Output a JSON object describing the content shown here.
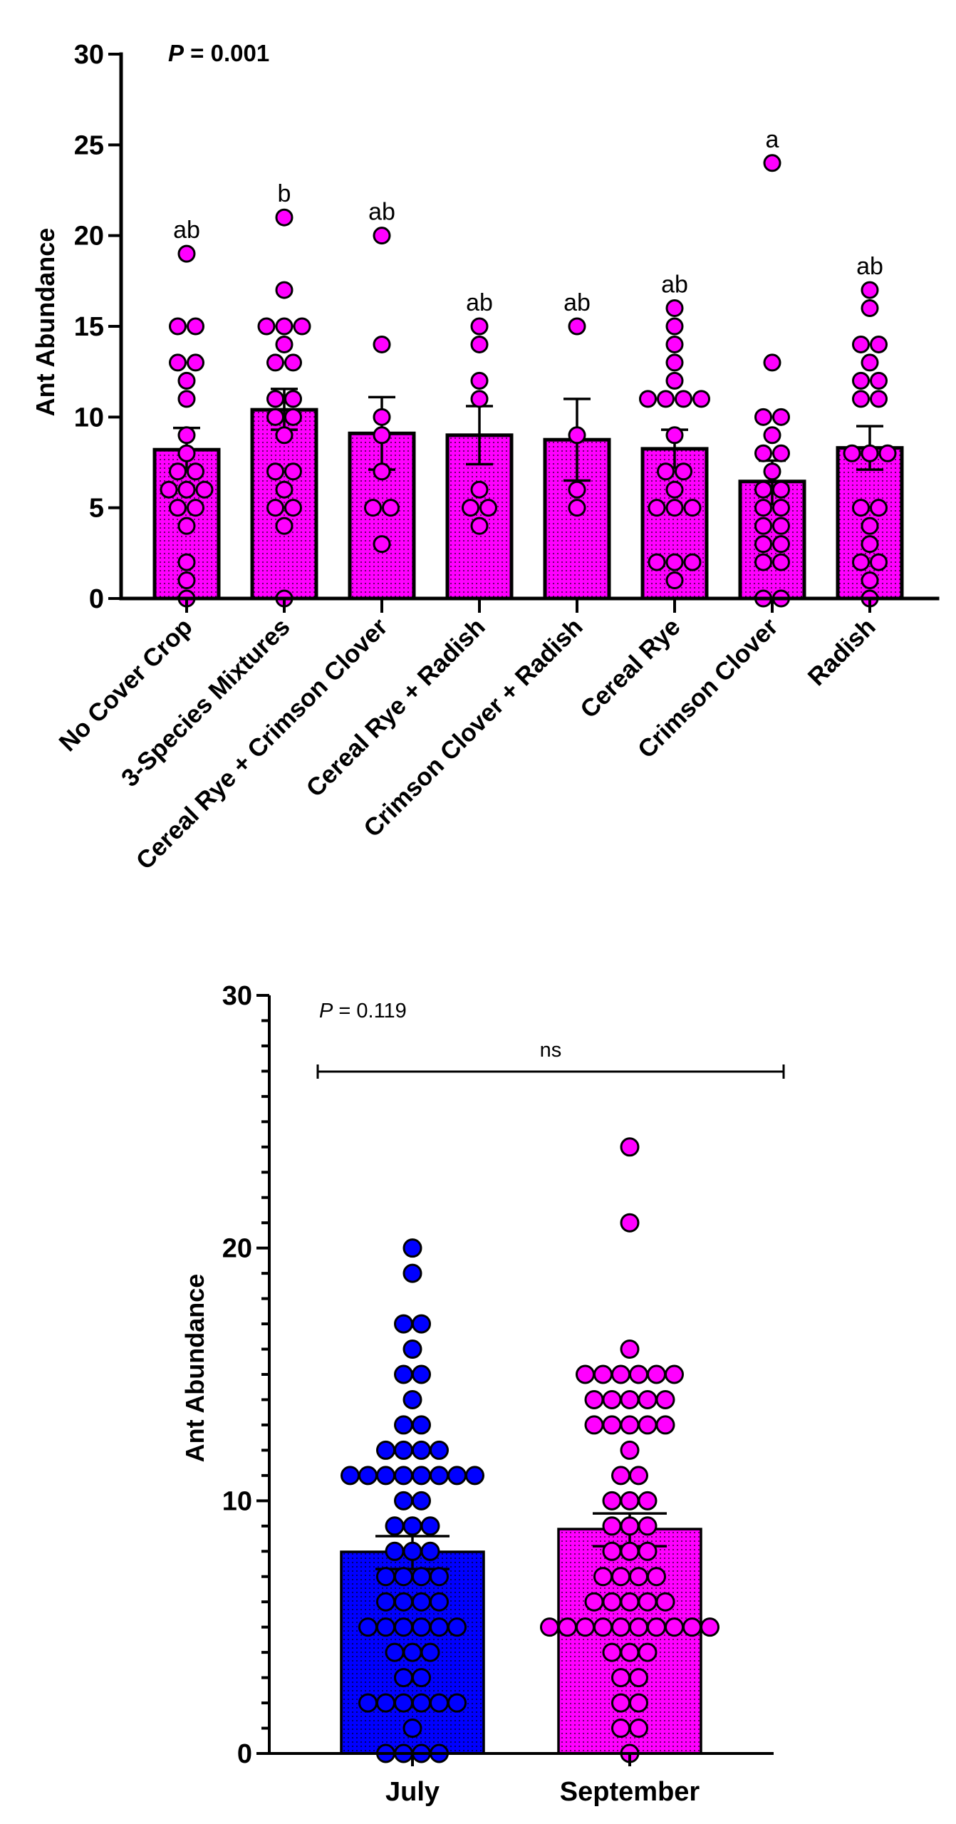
{
  "chart_data": [
    {
      "type": "bar",
      "subtype": "bar-with-scatter-points-and-sem-error-bars",
      "title": "",
      "annotation": {
        "p_label": "P",
        "p_text": " = 0.001"
      },
      "xlabel": "",
      "ylabel": "Ant Abundance",
      "ylim": [
        0,
        30
      ],
      "yticks": [
        0,
        5,
        10,
        15,
        20,
        25,
        30
      ],
      "grid": false,
      "legend": "none",
      "bar_color": "#ff00ff",
      "point_color": "#ff00ff",
      "categories": [
        "No Cover Crop",
        "3-Species Mixtures",
        "Cereal Rye + Crimson Clover",
        "Cereal Rye + Radish",
        "Crimson Clover + Radish",
        "Cereal Rye",
        "Crimson Clover",
        "Radish"
      ],
      "means": [
        8.2,
        10.4,
        9.1,
        9.0,
        8.75,
        8.25,
        6.45,
        8.3
      ],
      "error_upper": [
        9.4,
        11.55,
        11.1,
        10.6,
        11.0,
        9.3,
        7.6,
        9.5
      ],
      "error_lower": [
        7.1,
        9.3,
        7.1,
        7.4,
        6.5,
        7.2,
        5.2,
        7.1
      ],
      "significance_letters": [
        "ab",
        "b",
        "ab",
        "ab",
        "ab",
        "ab",
        "a",
        "ab"
      ],
      "points": [
        [
          19,
          15,
          15,
          13,
          13,
          12,
          11,
          9,
          8,
          7,
          7,
          6,
          6,
          6,
          5,
          5,
          4,
          2,
          1,
          0
        ],
        [
          21,
          17,
          15,
          15,
          15,
          14,
          13,
          13,
          11,
          11,
          10,
          10,
          9,
          7,
          7,
          6,
          5,
          5,
          4,
          0
        ],
        [
          20,
          14,
          10,
          9,
          7,
          5,
          5,
          3
        ],
        [
          15,
          14,
          12,
          11,
          6,
          5,
          5,
          4
        ],
        [
          15,
          9,
          6,
          5
        ],
        [
          16,
          15,
          14,
          13,
          12,
          11,
          11,
          11,
          11,
          9,
          7,
          7,
          6,
          5,
          5,
          5,
          2,
          2,
          2,
          1
        ],
        [
          24,
          13,
          10,
          10,
          9,
          8,
          8,
          7,
          6,
          6,
          5,
          5,
          4,
          4,
          3,
          3,
          2,
          2,
          0,
          0
        ],
        [
          17,
          16,
          14,
          14,
          13,
          12,
          12,
          11,
          11,
          8,
          8,
          8,
          5,
          5,
          4,
          3,
          2,
          2,
          1,
          0
        ]
      ]
    },
    {
      "type": "bar",
      "subtype": "bar-with-scatter-points-and-sem-error-bars",
      "title": "",
      "annotation": {
        "p_label": "P",
        "p_text": " = 0.119"
      },
      "comparison_bracket": {
        "from": "July",
        "to": "September",
        "label": "ns"
      },
      "xlabel": "",
      "ylabel": "Ant Abundance",
      "ylim": [
        0,
        30
      ],
      "yticks": [
        0,
        10,
        20,
        30
      ],
      "minor_tick_step": 1,
      "grid": false,
      "legend": "none",
      "categories": [
        "July",
        "September"
      ],
      "colors": [
        "#0000ff",
        "#ff00ff"
      ],
      "means": [
        7.98,
        8.88
      ],
      "error_upper": [
        8.6,
        9.5
      ],
      "error_lower": [
        7.3,
        8.2
      ],
      "points": [
        [
          20,
          19,
          17,
          17,
          16,
          15,
          15,
          14,
          13,
          13,
          12,
          12,
          12,
          12,
          11,
          11,
          11,
          11,
          11,
          11,
          11,
          11,
          10,
          10,
          9,
          9,
          9,
          8,
          8,
          8,
          7,
          7,
          7,
          7,
          6,
          6,
          6,
          6,
          5,
          5,
          5,
          5,
          5,
          5,
          4,
          4,
          4,
          3,
          3,
          2,
          2,
          2,
          2,
          2,
          2,
          1,
          0,
          0,
          0,
          0
        ],
        [
          24,
          21,
          16,
          15,
          15,
          15,
          15,
          15,
          15,
          14,
          14,
          14,
          14,
          14,
          13,
          13,
          13,
          13,
          13,
          12,
          11,
          11,
          10,
          10,
          10,
          9,
          9,
          9,
          8,
          8,
          8,
          7,
          7,
          7,
          7,
          6,
          6,
          6,
          6,
          6,
          5,
          5,
          5,
          5,
          5,
          5,
          5,
          5,
          5,
          5,
          4,
          4,
          4,
          3,
          3,
          2,
          2,
          1,
          1,
          0
        ]
      ]
    }
  ]
}
